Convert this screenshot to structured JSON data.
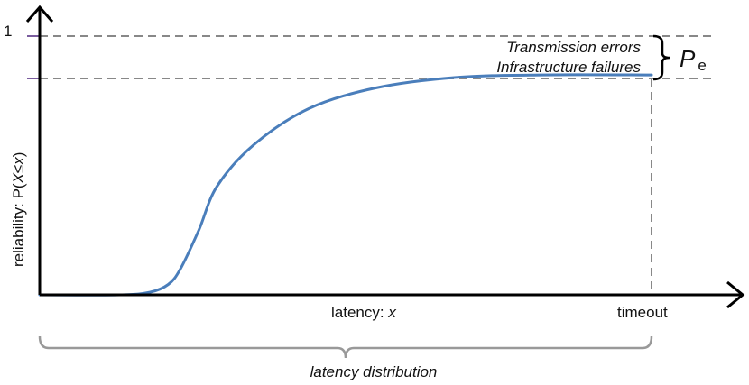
{
  "axes": {
    "y_label_prefix": "reliability: P(",
    "y_label_var": "X",
    "y_label_op": "≤",
    "y_label_arg": "x",
    "y_label_suffix": ")",
    "y_tick_one": "1",
    "x_label_prefix": "latency: ",
    "x_label_var": "x",
    "timeout_label": "timeout"
  },
  "annotations": {
    "transmission_errors": "Transmission errors",
    "infrastructure_failures": "Infrastructure failures",
    "pe_symbol": "P",
    "pe_subscript": "e",
    "latency_distribution": "latency distribution"
  },
  "chart_data": {
    "type": "line",
    "series": [
      {
        "x": [
          0,
          0.13,
          0.18,
          0.21,
          0.23,
          0.26,
          0.29,
          0.35,
          0.44,
          0.55,
          0.68,
          0.82,
          1.0
        ],
        "values": [
          0,
          0,
          0.01,
          0.04,
          0.1,
          0.25,
          0.42,
          0.58,
          0.72,
          0.8,
          0.84,
          0.85,
          0.85
        ]
      }
    ],
    "x_max": 1.0,
    "ylim": [
      0,
      1
    ],
    "reliability_plateau": 0.85,
    "colors": {
      "curve": "#4a7ebb",
      "axis": "#000000",
      "guide": "#888888",
      "tick": "#7a5c9e"
    }
  }
}
